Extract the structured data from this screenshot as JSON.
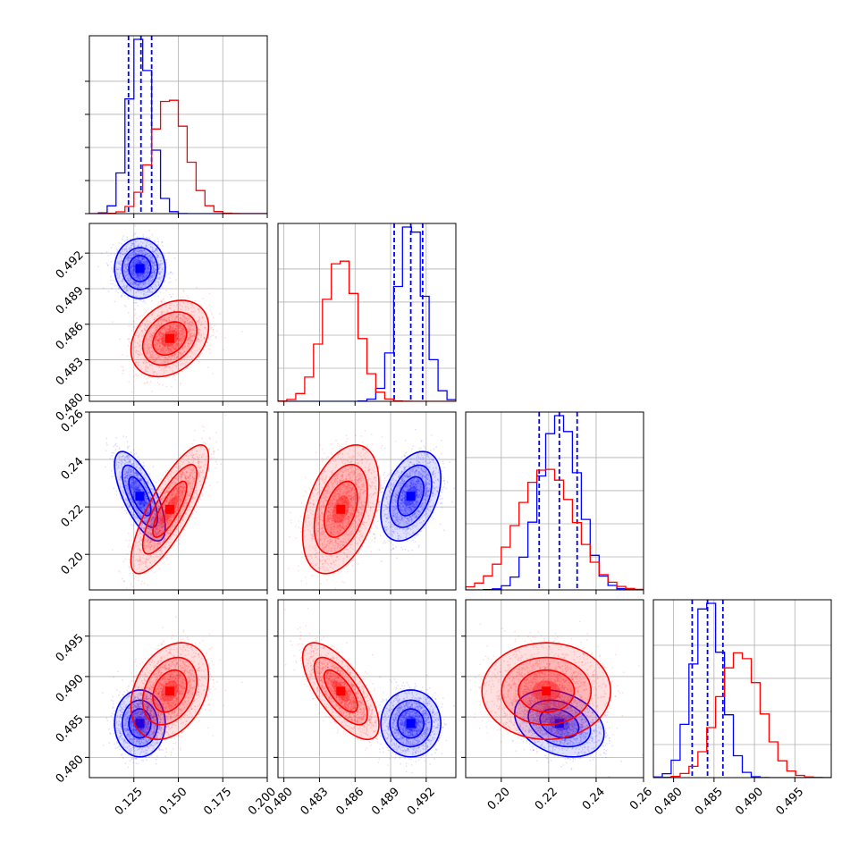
{
  "chart_data": {
    "type": "corner",
    "grid": true,
    "series": [
      {
        "color": "#0000ff",
        "mean": [
          0.1284,
          0.4907,
          0.2245,
          0.4842
        ],
        "sd": [
          0.0062,
          0.0011,
          0.0082,
          0.0018
        ],
        "quantiles": [
          [
            0.122,
            0.129,
            0.135
          ],
          [
            0.4893,
            0.4907,
            0.4917
          ],
          [
            0.216,
            0.2245,
            0.232
          ],
          [
            0.4823,
            0.4842,
            0.4861
          ]
        ],
        "corr": [
          [
            1,
            0,
            -0.7,
            0
          ],
          [
            0,
            1,
            0.4,
            0
          ],
          [
            -0.7,
            0.4,
            1,
            -0.3
          ],
          [
            0,
            0,
            -0.3,
            1
          ]
        ]
      },
      {
        "color": "#ff0000",
        "mean": [
          0.1452,
          0.4848,
          0.219,
          0.4882
        ],
        "sd": [
          0.0095,
          0.0014,
          0.0118,
          0.0026
        ],
        "corr": [
          [
            1,
            0.3,
            0.8,
            0.3
          ],
          [
            0.3,
            1,
            0.4,
            -0.7
          ],
          [
            0.8,
            0.4,
            1,
            0
          ],
          [
            0.3,
            -0.7,
            0,
            1
          ]
        ]
      }
    ],
    "axes": [
      {
        "range": [
          0.1,
          0.2
        ],
        "ticks": [
          0.125,
          0.15,
          0.175,
          0.2
        ],
        "tick_labels": [
          "0.125",
          "0.150",
          "0.175",
          "0.200"
        ]
      },
      {
        "range": [
          0.4795,
          0.4945
        ],
        "ticks": [
          0.48,
          0.483,
          0.486,
          0.489,
          0.492
        ],
        "tick_labels": [
          "0.480",
          "0.483",
          "0.486",
          "0.489",
          "0.492"
        ]
      },
      {
        "range": [
          0.185,
          0.26
        ],
        "ticks": [
          0.2,
          0.22,
          0.24,
          0.26
        ],
        "tick_labels": [
          "0.20",
          "0.22",
          "0.24",
          "0.26"
        ]
      },
      {
        "range": [
          0.4775,
          0.4995
        ],
        "ticks": [
          0.48,
          0.485,
          0.49,
          0.495
        ],
        "tick_labels": [
          "0.480",
          "0.485",
          "0.490",
          "0.495"
        ]
      }
    ]
  }
}
